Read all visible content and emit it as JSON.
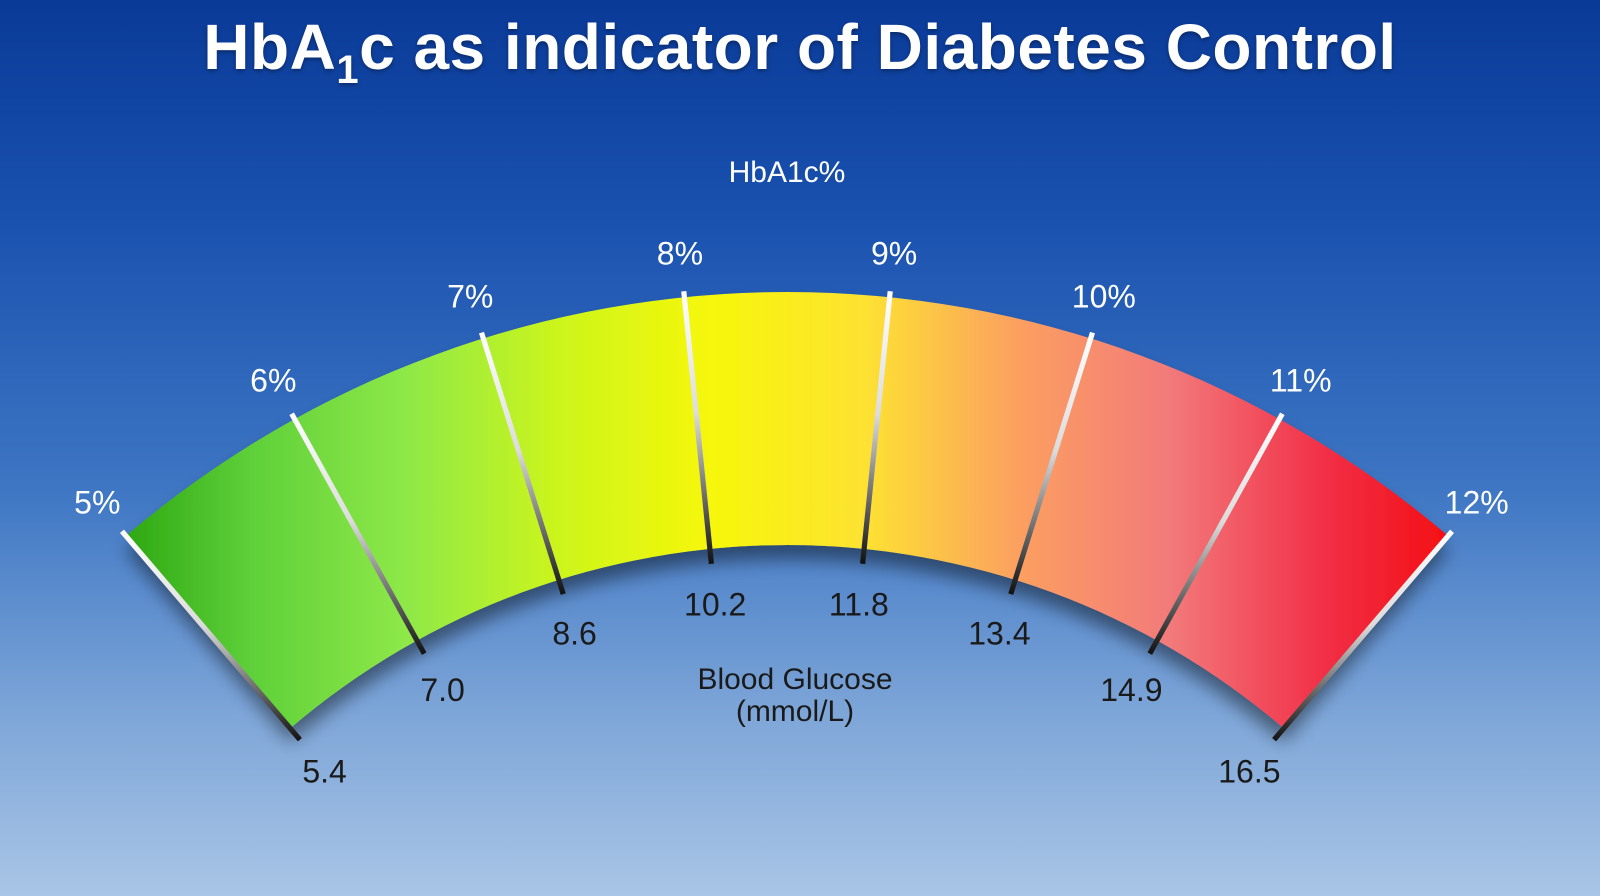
{
  "title": {
    "prefix": "HbA",
    "subscript": "1",
    "suffix": "c as indicator of Diabetes Control"
  },
  "top_label": "HbA1c%",
  "bottom_label_line1": "Blood Glucose",
  "bottom_label_line2": "(mmol/L)",
  "gradient_colors": [
    "#24a00a",
    "#5fd03a",
    "#8ee848",
    "#ccf51c",
    "#f6f70a",
    "#fde232",
    "#fca060",
    "#f27a7a",
    "#f23048",
    "#f40808"
  ],
  "ticks": [
    {
      "hba1c": "5%",
      "glucose": "5.4"
    },
    {
      "hba1c": "6%",
      "glucose": "7.0"
    },
    {
      "hba1c": "7%",
      "glucose": "8.6"
    },
    {
      "hba1c": "8%",
      "glucose": "10.2"
    },
    {
      "hba1c": "9%",
      "glucose": "11.8"
    },
    {
      "hba1c": "10%",
      "glucose": "13.4"
    },
    {
      "hba1c": "11%",
      "glucose": "14.9"
    },
    {
      "hba1c": "12%",
      "glucose": "16.5"
    }
  ]
}
